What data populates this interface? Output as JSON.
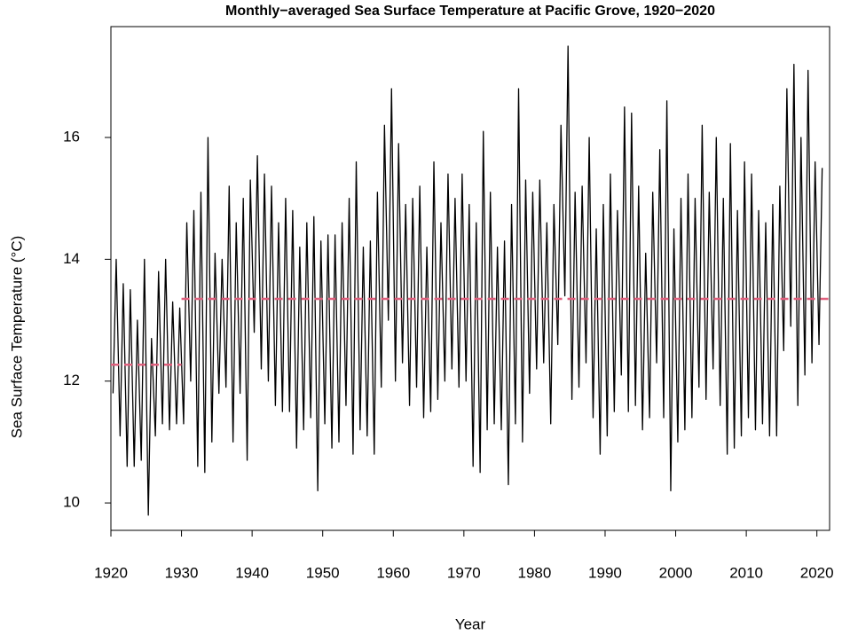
{
  "chart_data": {
    "type": "line",
    "title": "Monthly−averaged Sea Surface Temperature at Pacific Grove, 1920−2020",
    "x_label": "Year",
    "y_label": "Sea Surface Temperature (°C)",
    "xlim": [
      1920,
      2021.8
    ],
    "xticks": [
      1920,
      1930,
      1940,
      1950,
      1960,
      1970,
      1980,
      1990,
      2000,
      2010,
      2020
    ],
    "ylim": [
      9.55,
      17.82
    ],
    "yticks": [
      10,
      12,
      14,
      16
    ],
    "grid": false,
    "series": [
      {
        "color": "#000000",
        "dash": false,
        "x": [
          1920.3,
          1920.75,
          1921.3,
          1921.75,
          1922.3,
          1922.75,
          1923.3,
          1923.75,
          1924.3,
          1924.75,
          1925.3,
          1925.75,
          1926.3,
          1926.75,
          1927.3,
          1927.75,
          1928.3,
          1928.75,
          1929.3,
          1929.75,
          1930.3,
          1930.75,
          1931.3,
          1931.75,
          1932.3,
          1932.75,
          1933.3,
          1933.75,
          1934.3,
          1934.75,
          1935.3,
          1935.75,
          1936.3,
          1936.75,
          1937.3,
          1937.75,
          1938.3,
          1938.75,
          1939.3,
          1939.75,
          1940.3,
          1940.75,
          1941.3,
          1941.75,
          1942.3,
          1942.75,
          1943.3,
          1943.75,
          1944.3,
          1944.75,
          1945.3,
          1945.75,
          1946.3,
          1946.75,
          1947.3,
          1947.75,
          1948.3,
          1948.75,
          1949.3,
          1949.75,
          1950.3,
          1950.75,
          1951.3,
          1951.75,
          1952.3,
          1952.75,
          1953.3,
          1953.75,
          1954.3,
          1954.75,
          1955.3,
          1955.75,
          1956.3,
          1956.75,
          1957.3,
          1957.75,
          1958.3,
          1958.75,
          1959.3,
          1959.75,
          1960.3,
          1960.75,
          1961.3,
          1961.75,
          1962.3,
          1962.75,
          1963.3,
          1963.75,
          1964.3,
          1964.75,
          1965.3,
          1965.75,
          1966.3,
          1966.75,
          1967.3,
          1967.75,
          1968.3,
          1968.75,
          1969.3,
          1969.75,
          1970.3,
          1970.75,
          1971.3,
          1971.75,
          1972.3,
          1972.75,
          1973.3,
          1973.75,
          1974.3,
          1974.75,
          1975.3,
          1975.75,
          1976.3,
          1976.75,
          1977.3,
          1977.75,
          1978.3,
          1978.75,
          1979.3,
          1979.75,
          1980.3,
          1980.75,
          1981.3,
          1981.75,
          1982.3,
          1982.75,
          1983.3,
          1983.75,
          1984.3,
          1984.75,
          1985.3,
          1985.75,
          1986.3,
          1986.75,
          1987.3,
          1987.75,
          1988.3,
          1988.75,
          1989.3,
          1989.75,
          1990.3,
          1990.75,
          1991.3,
          1991.75,
          1992.3,
          1992.75,
          1993.3,
          1993.75,
          1994.3,
          1994.75,
          1995.3,
          1995.75,
          1996.3,
          1996.75,
          1997.3,
          1997.75,
          1998.3,
          1998.75,
          1999.3,
          1999.75,
          2000.3,
          2000.75,
          2001.3,
          2001.75,
          2002.3,
          2002.75,
          2003.3,
          2003.75,
          2004.3,
          2004.75,
          2005.3,
          2005.75,
          2006.3,
          2006.75,
          2007.3,
          2007.75,
          2008.3,
          2008.75,
          2009.3,
          2009.75,
          2010.3,
          2010.75,
          2011.3,
          2011.75,
          2012.3,
          2012.75,
          2013.3,
          2013.75,
          2014.3,
          2014.75,
          2015.3,
          2015.75,
          2016.3,
          2016.75,
          2017.3,
          2017.75,
          2018.3,
          2018.75,
          2019.3,
          2019.75,
          2020.3,
          2020.75
        ],
        "values": [
          11.8,
          14.0,
          11.1,
          13.6,
          10.6,
          13.5,
          10.6,
          13.0,
          10.7,
          14.0,
          9.8,
          12.7,
          11.1,
          13.8,
          11.3,
          14.0,
          11.2,
          13.3,
          11.3,
          13.2,
          11.3,
          14.6,
          12.0,
          14.8,
          10.6,
          15.1,
          10.5,
          16.0,
          11.0,
          14.1,
          11.8,
          14.0,
          11.9,
          15.2,
          11.0,
          14.6,
          11.8,
          15.0,
          10.7,
          15.3,
          12.8,
          15.7,
          12.2,
          15.4,
          12.0,
          15.2,
          11.6,
          14.6,
          11.5,
          15.0,
          11.5,
          14.8,
          10.9,
          14.2,
          11.2,
          14.6,
          11.4,
          14.7,
          10.2,
          14.3,
          11.3,
          14.4,
          10.9,
          14.4,
          11.0,
          14.6,
          11.6,
          15.0,
          10.8,
          15.6,
          11.2,
          14.2,
          11.1,
          14.3,
          10.8,
          15.1,
          11.9,
          16.2,
          13.0,
          16.8,
          12.0,
          15.9,
          12.3,
          14.9,
          11.6,
          15.0,
          11.9,
          15.2,
          11.4,
          14.2,
          11.5,
          15.6,
          11.7,
          14.6,
          12.0,
          15.4,
          12.2,
          15.0,
          11.9,
          15.4,
          12.0,
          14.9,
          10.6,
          14.6,
          10.5,
          16.1,
          11.2,
          15.1,
          11.3,
          14.2,
          11.2,
          14.3,
          10.3,
          14.9,
          11.3,
          16.8,
          11.0,
          15.3,
          11.8,
          15.1,
          12.2,
          15.3,
          12.3,
          14.6,
          11.3,
          14.9,
          12.6,
          16.2,
          13.4,
          17.5,
          11.7,
          15.1,
          11.9,
          15.2,
          12.3,
          16.0,
          11.4,
          14.5,
          10.8,
          14.9,
          11.1,
          15.4,
          11.5,
          14.8,
          12.1,
          16.5,
          11.5,
          16.4,
          11.6,
          15.2,
          11.2,
          14.1,
          11.4,
          15.1,
          12.3,
          15.8,
          11.4,
          16.6,
          10.2,
          14.5,
          11.0,
          15.0,
          11.2,
          15.4,
          11.4,
          15.0,
          11.9,
          16.2,
          11.7,
          15.1,
          12.2,
          16.0,
          11.6,
          15.0,
          10.8,
          15.9,
          10.9,
          14.8,
          11.1,
          15.6,
          11.4,
          15.4,
          11.2,
          14.8,
          11.3,
          14.6,
          11.1,
          14.9,
          11.1,
          15.2,
          12.5,
          16.8,
          12.9,
          17.2,
          11.6,
          16.0,
          12.1,
          17.1,
          12.3,
          15.6,
          12.6,
          15.5
        ]
      },
      {
        "color": "#e0607e",
        "dash": true,
        "x": [
          1920,
          1930
        ],
        "values": [
          12.27,
          12.27
        ]
      },
      {
        "color": "#e0607e",
        "dash": true,
        "x": [
          1930,
          2021.8
        ],
        "values": [
          13.35,
          13.35
        ]
      }
    ]
  }
}
